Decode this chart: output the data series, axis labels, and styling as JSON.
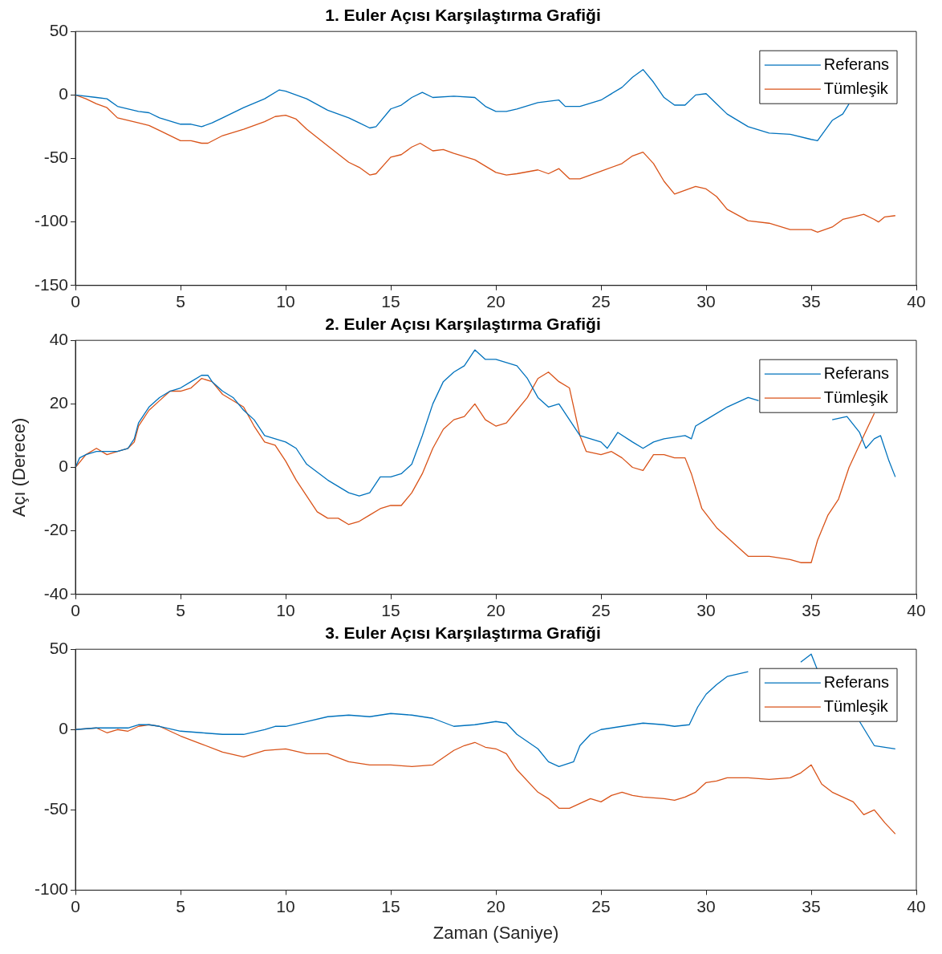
{
  "chart_data": [
    {
      "type": "line",
      "title": "1. Euler Açısı Karşılaştırma Grafiği",
      "xlim": [
        0,
        40
      ],
      "xticks": [
        0,
        5,
        10,
        15,
        20,
        25,
        30,
        35,
        40
      ],
      "ylim": [
        -150,
        50
      ],
      "yticks": [
        -150,
        -100,
        -50,
        0,
        50
      ],
      "grid": false,
      "legend": "top right",
      "marker": "none",
      "line_style": "solid",
      "series": [
        {
          "name": "Referans",
          "color": "#0072bd",
          "x": [
            0,
            1,
            1.5,
            2,
            3,
            3.5,
            4,
            5,
            5.5,
            6,
            6.5,
            7,
            8,
            9,
            9.7,
            10,
            11,
            12,
            13,
            13.5,
            14,
            14.3,
            15,
            15.5,
            16,
            16.5,
            17,
            18,
            19,
            19.5,
            20,
            20.5,
            21,
            22,
            23,
            23.3,
            24,
            25,
            26,
            26.5,
            27,
            27.5,
            28,
            28.5,
            29,
            29.5,
            30,
            30.5,
            31,
            32,
            33,
            34,
            35,
            35.3,
            36,
            36.5,
            36.8
          ],
          "values": [
            0,
            -2,
            -3,
            -9,
            -13,
            -14,
            -18,
            -23,
            -23,
            -25,
            -22,
            -18,
            -10,
            -3,
            4,
            3,
            -3,
            -12,
            -18,
            -22,
            -26,
            -25,
            -11,
            -8,
            -2,
            2,
            -2,
            -1,
            -2,
            -9,
            -13,
            -13,
            -11,
            -6,
            -4,
            -9,
            -9,
            -4,
            6,
            14,
            20,
            10,
            -2,
            -8,
            -8,
            0,
            1,
            -7,
            -15,
            -25,
            -30,
            -31,
            -35,
            -36,
            -20,
            -15,
            -7
          ]
        },
        {
          "name": "Tümleşik",
          "color": "#d95319",
          "x": [
            0,
            0.5,
            1,
            1.5,
            2,
            3,
            3.5,
            4,
            5,
            5.5,
            6,
            6.3,
            7,
            8,
            9,
            9.5,
            10,
            10.5,
            11,
            12,
            13,
            13.5,
            14,
            14.3,
            15,
            15.5,
            16,
            16.4,
            17,
            17.5,
            18,
            19,
            20,
            20.5,
            21,
            22,
            22.5,
            23,
            23.5,
            24,
            25,
            26,
            26.5,
            27,
            27.5,
            28,
            28.5,
            29,
            29.5,
            30,
            30.5,
            31,
            32,
            33,
            34,
            35,
            35.3,
            36,
            36.5,
            37,
            37.5,
            38,
            38.2,
            38.5,
            39
          ],
          "values": [
            0,
            -3,
            -7,
            -10,
            -18,
            -22,
            -24,
            -28,
            -36,
            -36,
            -38,
            -38,
            -32,
            -27,
            -21,
            -17,
            -16,
            -19,
            -27,
            -40,
            -53,
            -57,
            -63,
            -62,
            -49,
            -47,
            -41,
            -38,
            -44,
            -43,
            -46,
            -51,
            -61,
            -63,
            -62,
            -59,
            -62,
            -58,
            -66,
            -66,
            -60,
            -54,
            -48,
            -45,
            -54,
            -68,
            -78,
            -75,
            -72,
            -74,
            -80,
            -90,
            -99,
            -101,
            -106,
            -106,
            -108,
            -104,
            -98,
            -96,
            -94,
            -98,
            -100,
            -96,
            -95
          ]
        }
      ]
    },
    {
      "type": "line",
      "title": "2. Euler Açısı Karşılaştırma Grafiği",
      "ylabel": "Açı (Derece)",
      "xlim": [
        0,
        40
      ],
      "xticks": [
        0,
        5,
        10,
        15,
        20,
        25,
        30,
        35,
        40
      ],
      "ylim": [
        -40,
        40
      ],
      "yticks": [
        -40,
        -20,
        0,
        20,
        40
      ],
      "grid": false,
      "legend": "top right",
      "marker": "none",
      "line_style": "solid",
      "series": [
        {
          "name": "Referans",
          "color": "#0072bd",
          "x": [
            0,
            0.2,
            0.5,
            1,
            2,
            2.5,
            2.8,
            3,
            3.5,
            4,
            4.5,
            5,
            5.5,
            6,
            6.3,
            6.5,
            7,
            7.5,
            8,
            8.5,
            9,
            10,
            10.5,
            11,
            12,
            13,
            13.5,
            14,
            14.5,
            15,
            15.5,
            16,
            16.5,
            17,
            17.5,
            18,
            18.5,
            19,
            19.5,
            20,
            21,
            21.5,
            22,
            22.5,
            23,
            23.5,
            24,
            24.5,
            25,
            25.3,
            25.8,
            26.5,
            27,
            27.5,
            28,
            29,
            29.3,
            29.5,
            30,
            31,
            32,
            32.5,
            34,
            36,
            36.7,
            37.3,
            37.6,
            38,
            38.3,
            38.7,
            39
          ],
          "values": [
            0,
            3,
            4,
            5,
            5,
            6,
            9,
            14,
            19,
            22,
            24,
            25,
            27,
            29,
            29,
            27,
            24,
            22,
            18,
            15,
            10,
            8,
            6,
            1,
            -4,
            -8,
            -9,
            -8,
            -3,
            -3,
            -2,
            1,
            10,
            20,
            27,
            30,
            32,
            37,
            34,
            34,
            32,
            28,
            22,
            19,
            20,
            15,
            10,
            9,
            8,
            6,
            11,
            8,
            6,
            8,
            9,
            10,
            9,
            13,
            15,
            19,
            22,
            21,
            null,
            15,
            16,
            11,
            6,
            9,
            10,
            2,
            -3
          ]
        },
        {
          "name": "Tümleşik",
          "color": "#d95319",
          "x": [
            0,
            0.5,
            1,
            1.5,
            2,
            2.5,
            2.8,
            3,
            3.5,
            4,
            4.5,
            5,
            5.5,
            6,
            6.5,
            7,
            8,
            8.5,
            9,
            9.5,
            10,
            10.5,
            11,
            11.5,
            12,
            12.5,
            13,
            13.5,
            14,
            14.5,
            15,
            15.5,
            16,
            16.5,
            17,
            17.5,
            18,
            18.5,
            19,
            19.5,
            20,
            20.5,
            21,
            21.5,
            22,
            22.5,
            23,
            23.5,
            24,
            24.3,
            25,
            25.5,
            26,
            26.5,
            27,
            27.5,
            28,
            28.5,
            29,
            29.3,
            29.8,
            30.5,
            31,
            31.5,
            32,
            33,
            34,
            34.5,
            35,
            35.3,
            35.8,
            36.3,
            36.8,
            37.5,
            38
          ],
          "values": [
            0,
            4,
            6,
            4,
            5,
            6,
            8,
            13,
            18,
            21,
            24,
            24,
            25,
            28,
            27,
            23,
            19,
            13,
            8,
            7,
            2,
            -4,
            -9,
            -14,
            -16,
            -16,
            -18,
            -17,
            -15,
            -13,
            -12,
            -12,
            -8,
            -2,
            6,
            12,
            15,
            16,
            20,
            15,
            13,
            14,
            18,
            22,
            28,
            30,
            27,
            25,
            10,
            5,
            4,
            5,
            3,
            0,
            -1,
            4,
            4,
            3,
            3,
            -2,
            -13,
            -19,
            -22,
            -25,
            -28,
            -28,
            -29,
            -30,
            -30,
            -23,
            -15,
            -10,
            0,
            10,
            17
          ]
        }
      ]
    },
    {
      "type": "line",
      "title": "3. Euler Açısı Karşılaştırma Grafiği",
      "xlabel": "Zaman (Saniye)",
      "xlim": [
        0,
        40
      ],
      "xticks": [
        0,
        5,
        10,
        15,
        20,
        25,
        30,
        35,
        40
      ],
      "ylim": [
        -100,
        50
      ],
      "yticks": [
        -100,
        -50,
        0,
        50
      ],
      "grid": false,
      "legend": "top right",
      "marker": "none",
      "line_style": "solid",
      "series": [
        {
          "name": "Referans",
          "color": "#0072bd",
          "x": [
            0,
            1,
            2,
            2.5,
            3,
            3.5,
            4,
            5,
            6,
            7,
            8,
            9,
            9.5,
            10,
            11,
            12,
            13,
            14,
            15,
            16,
            17,
            18,
            19,
            20,
            20.5,
            21,
            22,
            22.5,
            23,
            23.7,
            24,
            24.5,
            25,
            26,
            27,
            28,
            28.5,
            29.2,
            29.6,
            30,
            30.5,
            31,
            32,
            33,
            33.5,
            34,
            34.5,
            35,
            35.3,
            36,
            37.3,
            38,
            39
          ],
          "values": [
            0,
            1,
            1,
            1,
            3,
            3,
            2,
            -1,
            -2,
            -3,
            -3,
            0,
            2,
            2,
            5,
            8,
            9,
            8,
            10,
            9,
            7,
            2,
            3,
            5,
            4,
            -3,
            -12,
            -20,
            -23,
            -20,
            -10,
            -3,
            0,
            2,
            4,
            3,
            2,
            3,
            14,
            22,
            28,
            33,
            36,
            null,
            null,
            null,
            42,
            47,
            37,
            null,
            5,
            -10,
            -12
          ]
        },
        {
          "name": "Tümleşik",
          "color": "#d95319",
          "x": [
            0,
            1,
            1.5,
            2,
            2.5,
            3,
            3.5,
            4,
            5,
            6,
            7,
            8,
            8.5,
            9,
            10,
            11,
            12,
            13,
            14,
            15,
            16,
            17,
            18,
            18.5,
            19,
            19.5,
            20,
            20.5,
            21,
            22,
            22.5,
            23,
            23.5,
            24,
            24.5,
            25,
            25.5,
            26,
            26.5,
            27,
            28,
            28.5,
            29,
            29.5,
            30,
            30.5,
            31,
            32,
            33,
            34,
            34.5,
            35,
            35.5,
            36,
            37,
            37.5,
            38,
            38.5,
            39
          ],
          "values": [
            0,
            1,
            -2,
            0,
            -1,
            2,
            3,
            2,
            -4,
            -9,
            -14,
            -17,
            -15,
            -13,
            -12,
            -15,
            -15,
            -20,
            -22,
            -22,
            -23,
            -22,
            -13,
            -10,
            -8,
            -11,
            -12,
            -15,
            -25,
            -39,
            -43,
            -49,
            -49,
            -46,
            -43,
            -45,
            -41,
            -39,
            -41,
            -42,
            -43,
            -44,
            -42,
            -39,
            -33,
            -32,
            -30,
            -30,
            -31,
            -30,
            -27,
            -22,
            -34,
            -39,
            -45,
            -53,
            -50,
            -58,
            -65
          ]
        }
      ]
    }
  ]
}
